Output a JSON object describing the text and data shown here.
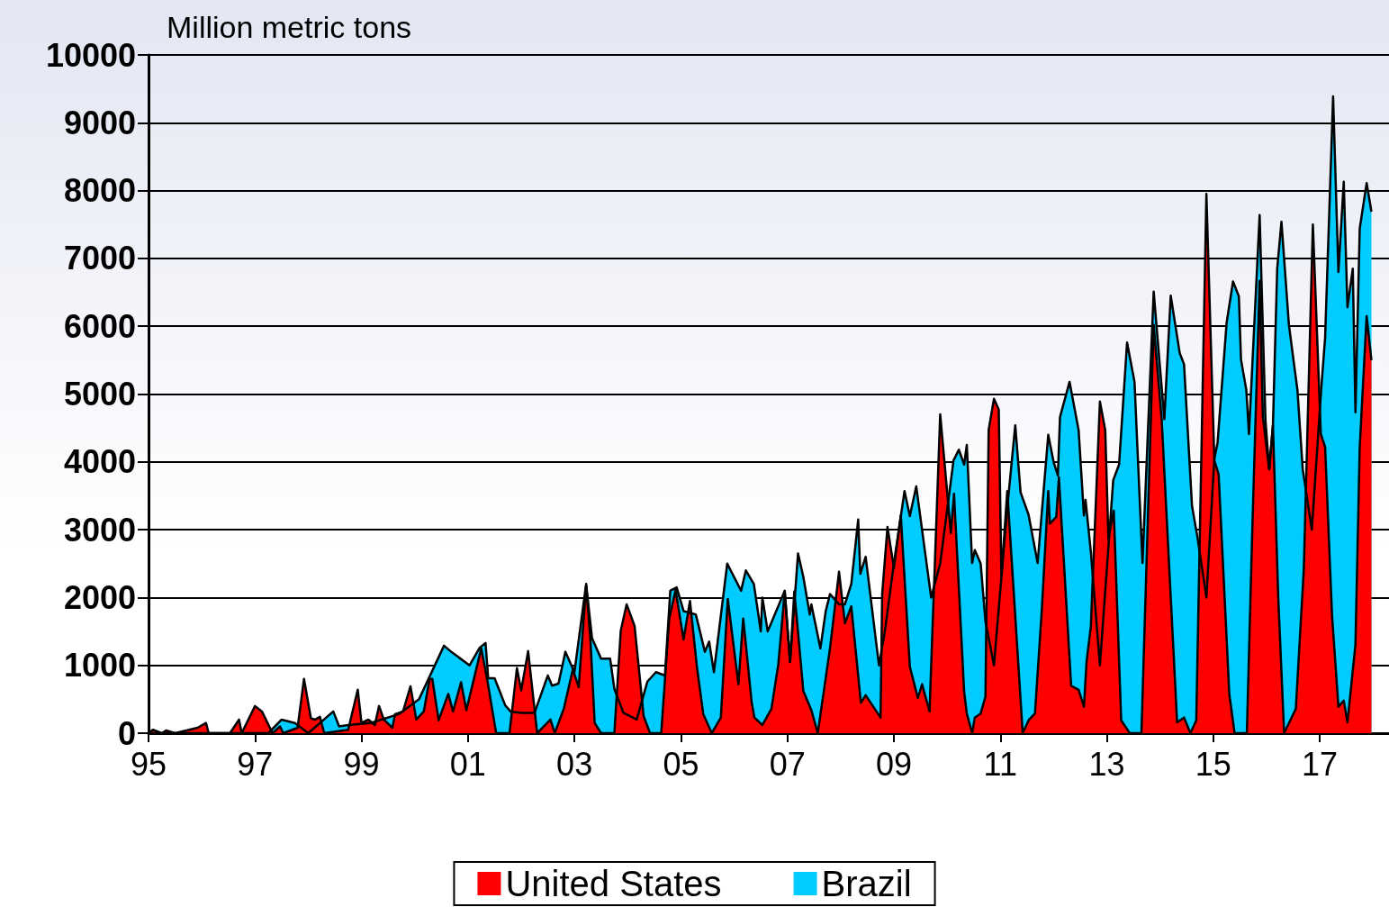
{
  "chart_data": {
    "type": "area",
    "ylabel": "Million metric tons",
    "xlim": [
      1995,
      2018.3
    ],
    "xticks": [
      {
        "value": 1995,
        "label": "95"
      },
      {
        "value": 1997,
        "label": "97"
      },
      {
        "value": 1999,
        "label": "99"
      },
      {
        "value": 2001,
        "label": "01"
      },
      {
        "value": 2003,
        "label": "03"
      },
      {
        "value": 2005,
        "label": "05"
      },
      {
        "value": 2007,
        "label": "07"
      },
      {
        "value": 2009,
        "label": "09"
      },
      {
        "value": 2011,
        "label": "11"
      },
      {
        "value": 2013,
        "label": "13"
      },
      {
        "value": 2015,
        "label": "15"
      },
      {
        "value": 2017,
        "label": "17"
      }
    ],
    "ylim": [
      0,
      10000
    ],
    "yticks": [
      0,
      1000,
      2000,
      3000,
      4000,
      5000,
      6000,
      7000,
      8000,
      9000,
      10000
    ],
    "grid": "y",
    "legend": "bottom",
    "series": [
      {
        "name": "Brazil",
        "color": "#00ccff",
        "x": [
          1995.0,
          1997.25,
          1997.5,
          1997.75,
          1998.0,
          1998.47,
          1998.58,
          1998.75,
          1999.17,
          1999.7,
          2000.08,
          2000.55,
          2000.67,
          2001.03,
          2001.22,
          2001.33,
          2001.38,
          2001.5,
          2001.7,
          2001.8,
          2002.0,
          2002.25,
          2002.5,
          2002.58,
          2002.7,
          2002.83,
          2003.0,
          2003.22,
          2003.33,
          2003.5,
          2003.67,
          2003.75,
          2003.92,
          2004.17,
          2004.37,
          2004.53,
          2004.7,
          2004.8,
          2004.92,
          2005.05,
          2005.28,
          2005.45,
          2005.53,
          2005.62,
          2005.87,
          2006.13,
          2006.22,
          2006.37,
          2006.5,
          2006.53,
          2006.63,
          2006.95,
          2007.05,
          2007.2,
          2007.3,
          2007.42,
          2007.45,
          2007.62,
          2007.72,
          2007.8,
          2007.97,
          2008.08,
          2008.2,
          2008.33,
          2008.37,
          2008.47,
          2008.72,
          2008.83,
          2009.0,
          2009.2,
          2009.3,
          2009.42,
          2009.7,
          2009.87,
          2010.12,
          2010.22,
          2010.32,
          2010.37,
          2010.47,
          2010.52,
          2010.63,
          2010.72,
          2010.88,
          2011.13,
          2011.28,
          2011.38,
          2011.53,
          2011.7,
          2011.9,
          2012.0,
          2012.08,
          2012.12,
          2012.3,
          2012.47,
          2012.57,
          2012.6,
          2012.7,
          2012.87,
          2013.12,
          2013.23,
          2013.38,
          2013.52,
          2013.67,
          2013.88,
          2014.08,
          2014.2,
          2014.37,
          2014.45,
          2014.6,
          2014.7,
          2014.87,
          2015.02,
          2015.08,
          2015.25,
          2015.37,
          2015.48,
          2015.52,
          2015.62,
          2015.67,
          2015.87,
          2015.98,
          2016.05,
          2016.12,
          2016.2,
          2016.28,
          2016.42,
          2016.58,
          2016.68,
          2016.85,
          2017.03,
          2017.1,
          2017.25,
          2017.35,
          2017.45,
          2017.52,
          2017.62,
          2017.67,
          2017.75,
          2017.88,
          2017.97
        ],
        "values": [
          0,
          0,
          200,
          150,
          0,
          320,
          100,
          120,
          150,
          280,
          500,
          1290,
          1210,
          1000,
          1260,
          1330,
          810,
          810,
          410,
          320,
          300,
          300,
          850,
          700,
          730,
          1200,
          900,
          2200,
          1400,
          1100,
          1100,
          650,
          300,
          200,
          760,
          900,
          850,
          2100,
          2150,
          1800,
          1750,
          1200,
          1350,
          900,
          2500,
          2100,
          2400,
          2200,
          1500,
          2000,
          1500,
          2100,
          1050,
          2650,
          2300,
          1750,
          1900,
          1250,
          1800,
          2050,
          1900,
          1900,
          2200,
          3150,
          2350,
          2600,
          1000,
          1500,
          2500,
          3570,
          3200,
          3640,
          2000,
          2500,
          4020,
          4180,
          3960,
          4250,
          2510,
          2700,
          2500,
          1650,
          1000,
          3320,
          4540,
          3550,
          3220,
          2510,
          4400,
          4000,
          3800,
          4660,
          5180,
          4470,
          3210,
          3440,
          2670,
          1000,
          3730,
          3960,
          5760,
          5180,
          2510,
          6510,
          4630,
          6450,
          5600,
          5440,
          3350,
          2900,
          2000,
          4050,
          4280,
          6050,
          6660,
          6440,
          5510,
          5060,
          4410,
          7640,
          4610,
          3890,
          4540,
          6850,
          7540,
          6020,
          5060,
          3890,
          3000,
          5110,
          5830,
          9390,
          6800,
          8130,
          6280,
          6850,
          4730,
          7440,
          8110,
          7690
        ]
      },
      {
        "name": "United States",
        "color": "#ff0000",
        "x": [
          1995.0,
          1995.08,
          1995.25,
          1995.33,
          1995.5,
          1995.92,
          1996.08,
          1996.13,
          1996.53,
          1996.7,
          1996.75,
          1997.0,
          1997.13,
          1997.33,
          1997.47,
          1997.53,
          1997.8,
          1997.92,
          1998.05,
          1998.13,
          1998.22,
          1998.3,
          1998.75,
          1998.93,
          1999.0,
          1999.13,
          1999.25,
          1999.33,
          1999.42,
          1999.58,
          1999.63,
          1999.78,
          1999.92,
          2000.03,
          2000.17,
          2000.28,
          2000.33,
          2000.45,
          2000.63,
          2000.72,
          2000.87,
          2000.97,
          2001.25,
          2001.37,
          2001.53,
          2001.78,
          2001.92,
          2002.0,
          2002.13,
          2002.3,
          2002.55,
          2002.63,
          2002.8,
          2002.97,
          2003.08,
          2003.22,
          2003.3,
          2003.38,
          2003.5,
          2003.75,
          2003.87,
          2003.98,
          2004.13,
          2004.3,
          2004.42,
          2004.63,
          2004.78,
          2004.9,
          2005.05,
          2005.17,
          2005.3,
          2005.42,
          2005.58,
          2005.75,
          2005.88,
          2006.08,
          2006.17,
          2006.33,
          2006.38,
          2006.53,
          2006.7,
          2006.83,
          2006.95,
          2007.05,
          2007.13,
          2007.3,
          2007.45,
          2007.57,
          2007.8,
          2007.97,
          2008.08,
          2008.2,
          2008.38,
          2008.47,
          2008.75,
          2008.78,
          2008.88,
          2009.0,
          2009.13,
          2009.3,
          2009.45,
          2009.53,
          2009.67,
          2009.87,
          2010.07,
          2010.13,
          2010.32,
          2010.37,
          2010.47,
          2010.52,
          2010.63,
          2010.72,
          2010.78,
          2010.88,
          2010.97,
          2011.02,
          2011.13,
          2011.42,
          2011.53,
          2011.65,
          2011.78,
          2011.9,
          2011.93,
          2012.05,
          2012.1,
          2012.33,
          2012.47,
          2012.57,
          2012.62,
          2012.7,
          2012.87,
          2012.97,
          2013.03,
          2013.13,
          2013.27,
          2013.43,
          2013.65,
          2013.88,
          2014.03,
          2014.32,
          2014.45,
          2014.57,
          2014.68,
          2014.87,
          2015.02,
          2015.1,
          2015.3,
          2015.4,
          2015.63,
          2015.73,
          2015.87,
          2015.93,
          2016.05,
          2016.12,
          2016.22,
          2016.33,
          2016.55,
          2016.7,
          2016.87,
          2017.02,
          2017.1,
          2017.23,
          2017.35,
          2017.45,
          2017.52,
          2017.67,
          2017.75,
          2017.88,
          2017.97
        ],
        "values": [
          0,
          50,
          0,
          40,
          0,
          80,
          150,
          0,
          0,
          200,
          0,
          400,
          320,
          0,
          100,
          0,
          80,
          800,
          220,
          200,
          240,
          0,
          50,
          640,
          150,
          200,
          120,
          400,
          200,
          80,
          280,
          320,
          690,
          200,
          320,
          800,
          800,
          190,
          580,
          320,
          750,
          340,
          1250,
          750,
          0,
          0,
          960,
          630,
          1210,
          0,
          200,
          0,
          360,
          940,
          680,
          2180,
          1380,
          150,
          0,
          0,
          1510,
          1900,
          1580,
          250,
          0,
          0,
          1690,
          2110,
          1380,
          1950,
          980,
          280,
          0,
          230,
          1980,
          720,
          1690,
          450,
          230,
          120,
          360,
          1020,
          2090,
          1050,
          2090,
          620,
          340,
          0,
          1250,
          2380,
          1620,
          1870,
          450,
          560,
          230,
          2050,
          3040,
          2440,
          3210,
          980,
          520,
          720,
          320,
          4700,
          2950,
          3530,
          610,
          290,
          0,
          230,
          290,
          540,
          4470,
          4930,
          4770,
          2310,
          3570,
          0,
          190,
          290,
          1830,
          3570,
          3090,
          3190,
          3770,
          700,
          640,
          390,
          1060,
          1580,
          4890,
          4470,
          2870,
          3280,
          190,
          0,
          0,
          6020,
          4630,
          160,
          230,
          0,
          190,
          7950,
          4020,
          3820,
          580,
          0,
          0,
          2930,
          6670,
          4670,
          3890,
          4540,
          1990,
          0,
          360,
          2420,
          7500,
          4410,
          4220,
          1740,
          390,
          480,
          160,
          1310,
          4220,
          6150,
          5500
        ]
      }
    ]
  }
}
